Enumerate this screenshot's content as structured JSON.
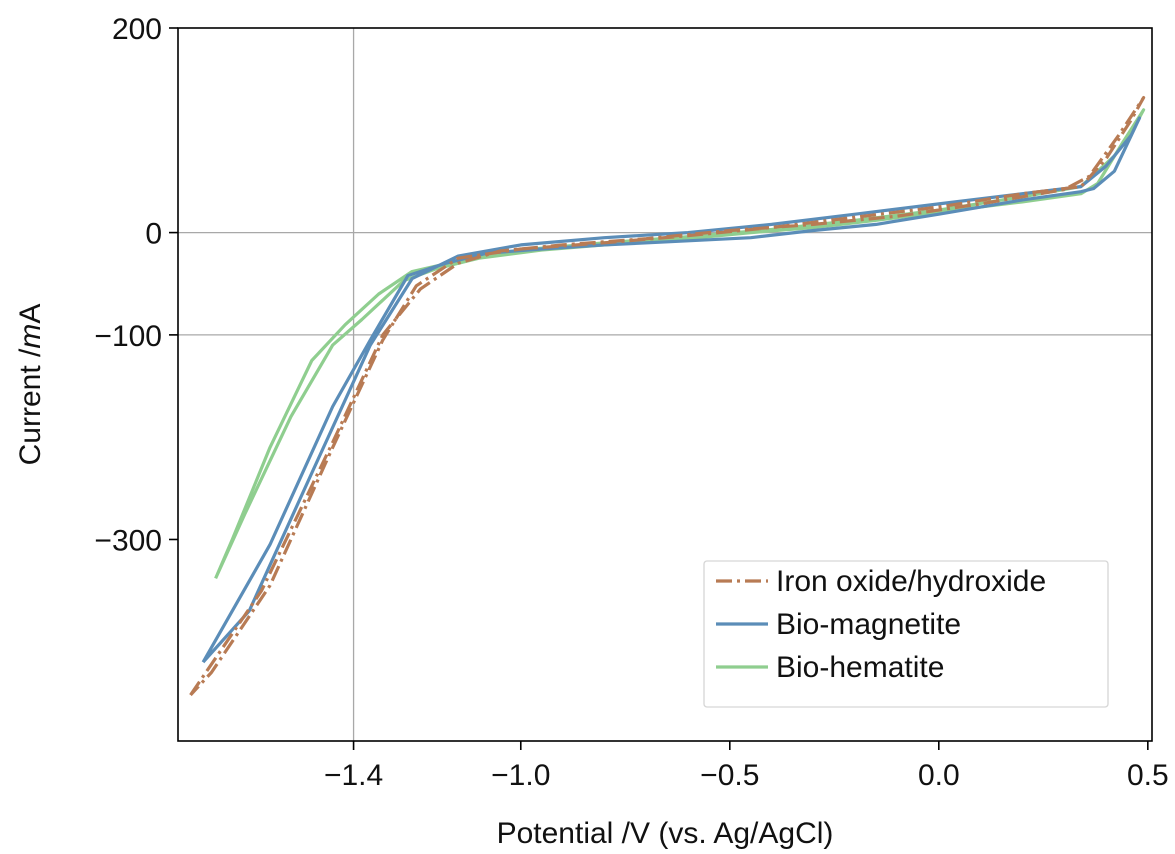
{
  "chart_data": {
    "type": "line",
    "title": "",
    "xlabel": "Potential /V (vs. Ag/AgCl)",
    "ylabel_parts": {
      "before": "Current /",
      "italic": "m",
      "after": "A"
    },
    "xlim": [
      -1.82,
      0.51
    ],
    "ylim": [
      -497,
      200
    ],
    "x_ticks": [
      {
        "value": -1.4,
        "label": "−1.4"
      },
      {
        "value": -1.0,
        "label": "−1.0"
      },
      {
        "value": -0.5,
        "label": "−0.5"
      },
      {
        "value": 0.0,
        "label": "0.0"
      },
      {
        "value": 0.5,
        "label": "0.5"
      }
    ],
    "y_ticks": [
      {
        "value": 200,
        "label": "200"
      },
      {
        "value": 0,
        "label": "0"
      },
      {
        "value": -100,
        "label": "−100"
      },
      {
        "value": -300,
        "label": "−300"
      }
    ],
    "grid": {
      "x": [
        -1.4
      ],
      "y": [
        0,
        -100
      ]
    },
    "legend": {
      "position": "bottom-right"
    },
    "series": [
      {
        "name": "Iron oxide/hydroxide",
        "color": "#b87b54",
        "dash": "dashdot",
        "x": [
          -1.79,
          -1.62,
          -1.45,
          -1.33,
          -1.24,
          -1.15,
          -1.05,
          -0.9,
          -0.7,
          -0.5,
          -0.3,
          -0.1,
          0.1,
          0.3,
          0.36,
          0.43,
          0.49,
          0.46,
          0.4,
          0.34,
          0.2,
          0.0,
          -0.2,
          -0.4,
          -0.6,
          -0.8,
          -1.0,
          -1.15,
          -1.25,
          -1.33,
          -1.45,
          -1.6,
          -1.74,
          -1.79
        ],
        "y": [
          -452,
          -350,
          -205,
          -100,
          -55,
          -30,
          -18,
          -12,
          -6,
          2,
          8,
          16,
          28,
          42,
          55,
          95,
          132,
          110,
          72,
          45,
          38,
          25,
          15,
          5,
          -3,
          -10,
          -16,
          -25,
          -52,
          -105,
          -210,
          -345,
          -430,
          -452
        ]
      },
      {
        "name": "Bio-magnetite",
        "color": "#5b8db8",
        "dash": "solid",
        "x": [
          -1.76,
          -1.6,
          -1.45,
          -1.36,
          -1.27,
          -1.18,
          -1.08,
          -0.95,
          -0.8,
          -0.6,
          -0.45,
          -0.3,
          -0.15,
          0.0,
          0.2,
          0.34,
          0.37,
          0.42,
          0.48,
          0.46,
          0.4,
          0.34,
          0.2,
          0.0,
          -0.2,
          -0.4,
          -0.6,
          -0.8,
          -1.0,
          -1.15,
          -1.26,
          -1.36,
          -1.5,
          -1.65,
          -1.76
        ],
        "y": [
          -420,
          -305,
          -170,
          -105,
          -42,
          -30,
          -20,
          -16,
          -12,
          -8,
          -5,
          2,
          8,
          18,
          32,
          40,
          43,
          60,
          112,
          95,
          65,
          45,
          38,
          28,
          18,
          8,
          0,
          -5,
          -12,
          -23,
          -45,
          -110,
          -235,
          -370,
          -420
        ]
      },
      {
        "name": "Bio-hematite",
        "color": "#8fce8f",
        "dash": "solid",
        "x": [
          -1.73,
          -1.66,
          -1.55,
          -1.45,
          -1.38,
          -1.28,
          -1.2,
          -1.1,
          -0.95,
          -0.8,
          -0.6,
          -0.45,
          -0.3,
          -0.15,
          0.0,
          0.2,
          0.34,
          0.38,
          0.44,
          0.49,
          0.47,
          0.42,
          0.34,
          0.2,
          0.0,
          -0.2,
          -0.4,
          -0.6,
          -0.8,
          -1.0,
          -1.12,
          -1.26,
          -1.34,
          -1.42,
          -1.5,
          -1.6,
          -1.69,
          -1.73
        ],
        "y": [
          -338,
          -275,
          -180,
          -110,
          -85,
          -47,
          -35,
          -25,
          -17,
          -12,
          -6,
          0,
          5,
          12,
          20,
          30,
          38,
          48,
          88,
          120,
          105,
          75,
          45,
          35,
          22,
          12,
          3,
          -4,
          -10,
          -17,
          -25,
          -38,
          -60,
          -90,
          -125,
          -210,
          -300,
          -338
        ]
      }
    ]
  }
}
